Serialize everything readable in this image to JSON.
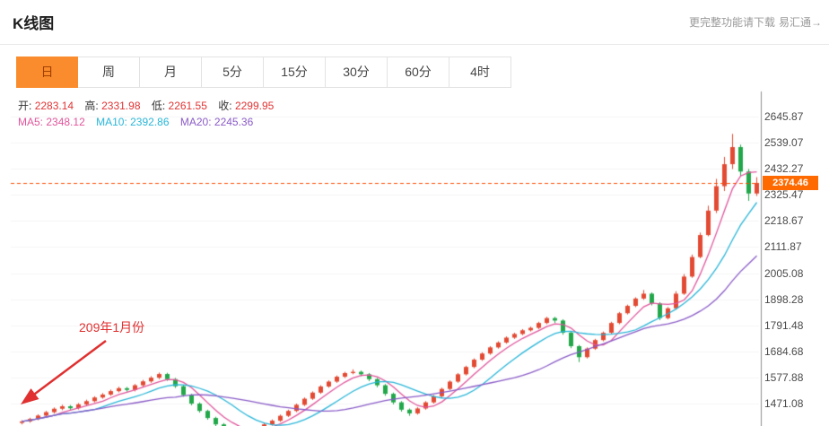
{
  "header": {
    "title": "K线图",
    "hint_text": "更完整功能请下载",
    "hint_link": "易汇通→"
  },
  "tabs": {
    "active": "日",
    "items": [
      "日",
      "周",
      "月",
      "5分",
      "15分",
      "30分",
      "60分",
      "4时"
    ]
  },
  "info": {
    "open_label": "开:",
    "open_value": "2283.14",
    "high_label": "高:",
    "high_value": "2331.98",
    "low_label": "低:",
    "low_value": "2261.55",
    "close_label": "收:",
    "close_value": "2299.95",
    "ma5_label": "MA5:",
    "ma5_value": "2348.12",
    "ma10_label": "MA10:",
    "ma10_value": "2392.86",
    "ma20_label": "MA20:",
    "ma20_value": "2245.36"
  },
  "annotation": {
    "text": "209年1月份"
  },
  "chart_data": {
    "type": "candlestick",
    "title": "K线图 日K",
    "current_price": 2374.46,
    "ohlc_info": {
      "open": 2283.14,
      "high": 2331.98,
      "low": 2261.55,
      "close": 2299.95
    },
    "ma_values": {
      "ma5": 2348.12,
      "ma10": 2392.86,
      "ma20": 2245.36
    },
    "ma_periods": [
      5,
      10,
      20
    ],
    "y_ticks": [
      2645.87,
      2539.07,
      2432.27,
      2325.47,
      2218.67,
      2111.87,
      2005.08,
      1898.28,
      1791.48,
      1684.68,
      1577.88,
      1471.08
    ],
    "ylim": [
      1379,
      2680
    ],
    "legend_position": "top-left",
    "grid": true,
    "colors": {
      "up": "#e34a33",
      "down": "#22a84a",
      "ma5": "#e0559c",
      "ma10": "#29b6d8",
      "ma20": "#8a5bc7",
      "price_line": "#ff4e00",
      "badge_bg": "#ff6a00",
      "accent_tab": "#fb8c2d",
      "annotation": "#e03030"
    },
    "candles": [
      [
        1392,
        1403,
        1386,
        1398
      ],
      [
        1398,
        1413,
        1393,
        1408
      ],
      [
        1408,
        1427,
        1403,
        1422
      ],
      [
        1422,
        1441,
        1416,
        1436
      ],
      [
        1436,
        1455,
        1430,
        1450
      ],
      [
        1450,
        1466,
        1444,
        1460
      ],
      [
        1460,
        1465,
        1446,
        1452
      ],
      [
        1452,
        1473,
        1447,
        1468
      ],
      [
        1468,
        1487,
        1462,
        1481
      ],
      [
        1481,
        1501,
        1476,
        1496
      ],
      [
        1496,
        1514,
        1491,
        1508
      ],
      [
        1508,
        1528,
        1503,
        1522
      ],
      [
        1522,
        1540,
        1517,
        1534
      ],
      [
        1534,
        1539,
        1520,
        1527
      ],
      [
        1527,
        1551,
        1521,
        1546
      ],
      [
        1546,
        1568,
        1540,
        1562
      ],
      [
        1562,
        1583,
        1556,
        1577
      ],
      [
        1577,
        1598,
        1571,
        1592
      ],
      [
        1592,
        1597,
        1564,
        1571
      ],
      [
        1571,
        1576,
        1535,
        1542
      ],
      [
        1542,
        1547,
        1499,
        1506
      ],
      [
        1506,
        1511,
        1464,
        1471
      ],
      [
        1471,
        1476,
        1434,
        1441
      ],
      [
        1441,
        1446,
        1405,
        1412
      ],
      [
        1412,
        1417,
        1379,
        1386
      ],
      [
        1386,
        1391,
        1364,
        1371
      ],
      [
        1371,
        1376,
        1354,
        1361
      ],
      [
        1361,
        1366,
        1349,
        1356
      ],
      [
        1356,
        1367,
        1351,
        1362
      ],
      [
        1362,
        1376,
        1357,
        1371
      ],
      [
        1371,
        1391,
        1366,
        1386
      ],
      [
        1386,
        1406,
        1381,
        1401
      ],
      [
        1401,
        1426,
        1396,
        1421
      ],
      [
        1421,
        1446,
        1416,
        1441
      ],
      [
        1441,
        1471,
        1436,
        1466
      ],
      [
        1466,
        1496,
        1461,
        1491
      ],
      [
        1491,
        1521,
        1486,
        1516
      ],
      [
        1516,
        1546,
        1511,
        1541
      ],
      [
        1541,
        1566,
        1536,
        1561
      ],
      [
        1561,
        1586,
        1556,
        1581
      ],
      [
        1581,
        1601,
        1576,
        1596
      ],
      [
        1596,
        1611,
        1591,
        1601
      ],
      [
        1601,
        1606,
        1583,
        1591
      ],
      [
        1591,
        1596,
        1563,
        1571
      ],
      [
        1571,
        1576,
        1538,
        1546
      ],
      [
        1546,
        1551,
        1503,
        1511
      ],
      [
        1511,
        1516,
        1468,
        1476
      ],
      [
        1476,
        1481,
        1438,
        1446
      ],
      [
        1446,
        1451,
        1421,
        1431
      ],
      [
        1431,
        1456,
        1426,
        1451
      ],
      [
        1451,
        1481,
        1446,
        1476
      ],
      [
        1476,
        1506,
        1471,
        1501
      ],
      [
        1501,
        1536,
        1496,
        1531
      ],
      [
        1531,
        1566,
        1526,
        1561
      ],
      [
        1561,
        1596,
        1556,
        1591
      ],
      [
        1591,
        1626,
        1586,
        1621
      ],
      [
        1621,
        1656,
        1616,
        1651
      ],
      [
        1651,
        1681,
        1646,
        1676
      ],
      [
        1676,
        1706,
        1671,
        1701
      ],
      [
        1701,
        1726,
        1696,
        1721
      ],
      [
        1721,
        1746,
        1716,
        1741
      ],
      [
        1741,
        1761,
        1736,
        1756
      ],
      [
        1756,
        1776,
        1751,
        1771
      ],
      [
        1771,
        1786,
        1766,
        1781
      ],
      [
        1781,
        1806,
        1776,
        1801
      ],
      [
        1801,
        1826,
        1796,
        1821
      ],
      [
        1821,
        1826,
        1801,
        1811
      ],
      [
        1811,
        1816,
        1753,
        1761
      ],
      [
        1761,
        1766,
        1698,
        1706
      ],
      [
        1706,
        1711,
        1641,
        1661
      ],
      [
        1661,
        1701,
        1656,
        1696
      ],
      [
        1696,
        1736,
        1691,
        1731
      ],
      [
        1731,
        1766,
        1726,
        1761
      ],
      [
        1761,
        1806,
        1756,
        1801
      ],
      [
        1801,
        1846,
        1796,
        1841
      ],
      [
        1841,
        1876,
        1836,
        1871
      ],
      [
        1871,
        1906,
        1866,
        1901
      ],
      [
        1901,
        1936,
        1896,
        1921
      ],
      [
        1921,
        1926,
        1873,
        1881
      ],
      [
        1881,
        1886,
        1813,
        1821
      ],
      [
        1821,
        1866,
        1816,
        1861
      ],
      [
        1861,
        1931,
        1856,
        1921
      ],
      [
        1921,
        2001,
        1916,
        1991
      ],
      [
        1991,
        2081,
        1986,
        2071
      ],
      [
        2071,
        2171,
        2066,
        2161
      ],
      [
        2161,
        2281,
        2156,
        2261
      ],
      [
        2261,
        2391,
        2251,
        2361
      ],
      [
        2361,
        2481,
        2341,
        2451
      ],
      [
        2451,
        2575,
        2431,
        2521
      ],
      [
        2521,
        2531,
        2401,
        2421
      ],
      [
        2421,
        2431,
        2301,
        2331
      ],
      [
        2331,
        2398,
        2321,
        2374.46
      ]
    ]
  }
}
